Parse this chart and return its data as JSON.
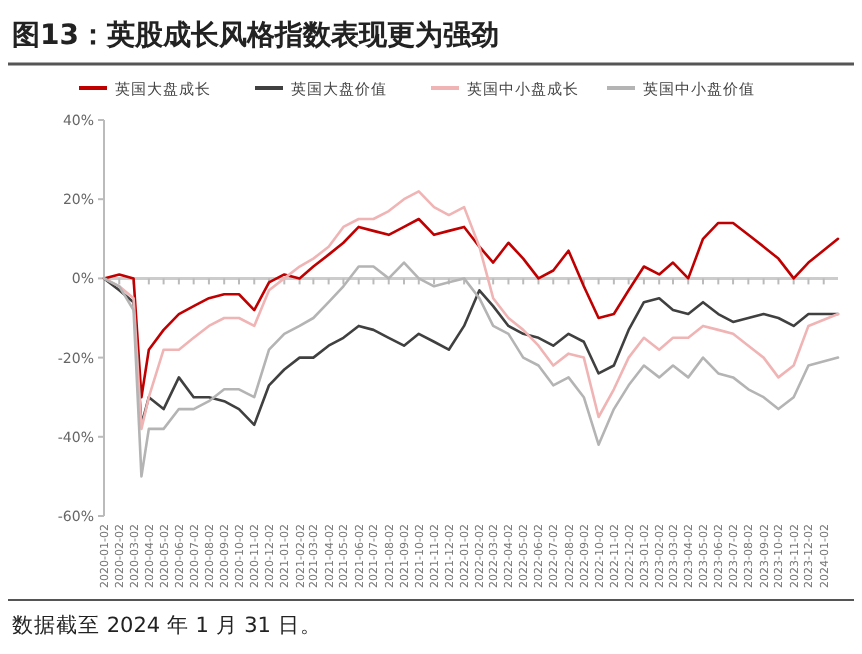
{
  "chart_data": {
    "type": "line",
    "title": "图13：英股成长风格指数表现更为强劲",
    "annotations": [
      "数据截至 2024 年 1 月 31 日。"
    ],
    "x": [
      "2020-01-02",
      "2020-02-02",
      "2020-03-02",
      "2020-03-18",
      "2020-04-02",
      "2020-05-02",
      "2020-06-02",
      "2020-07-02",
      "2020-08-02",
      "2020-09-02",
      "2020-10-02",
      "2020-11-02",
      "2020-12-02",
      "2021-01-02",
      "2021-02-02",
      "2021-03-02",
      "2021-04-02",
      "2021-05-02",
      "2021-06-02",
      "2021-07-02",
      "2021-08-02",
      "2021-09-02",
      "2021-10-02",
      "2021-11-02",
      "2021-12-02",
      "2022-01-02",
      "2022-02-02",
      "2022-03-02",
      "2022-04-02",
      "2022-05-02",
      "2022-06-02",
      "2022-07-02",
      "2022-08-02",
      "2022-09-02",
      "2022-10-02",
      "2022-11-02",
      "2022-12-02",
      "2023-01-02",
      "2023-02-02",
      "2023-03-02",
      "2023-04-02",
      "2023-05-02",
      "2023-06-02",
      "2023-07-02",
      "2023-08-02",
      "2023-09-02",
      "2023-10-02",
      "2023-11-02",
      "2023-12-02",
      "2024-01-31"
    ],
    "series": [
      {
        "name": "英国大盘成长",
        "color": "#c00000",
        "values": [
          0,
          1,
          0,
          -30,
          -18,
          -13,
          -9,
          -7,
          -5,
          -4,
          -4,
          -8,
          -1,
          1,
          0,
          3,
          6,
          9,
          13,
          12,
          11,
          13,
          15,
          11,
          12,
          13,
          8,
          4,
          9,
          5,
          0,
          2,
          7,
          -2,
          -10,
          -9,
          -3,
          3,
          1,
          4,
          0,
          10,
          14,
          14,
          11,
          8,
          5,
          0,
          4,
          10
        ]
      },
      {
        "name": "英国大盘价值",
        "color": "#404040",
        "values": [
          0,
          -3,
          -6,
          -37,
          -30,
          -33,
          -25,
          -30,
          -30,
          -31,
          -33,
          -37,
          -27,
          -23,
          -20,
          -20,
          -17,
          -15,
          -12,
          -13,
          -15,
          -17,
          -14,
          -16,
          -18,
          -12,
          -3,
          -7,
          -12,
          -14,
          -15,
          -17,
          -14,
          -16,
          -24,
          -22,
          -13,
          -6,
          -5,
          -8,
          -9,
          -6,
          -9,
          -11,
          -10,
          -9,
          -10,
          -12,
          -9,
          -9
        ]
      },
      {
        "name": "英国中小盘成长",
        "color": "#f0b4b4",
        "values": [
          0,
          -2,
          -5,
          -38,
          -30,
          -18,
          -18,
          -15,
          -12,
          -10,
          -10,
          -12,
          -3,
          0,
          3,
          5,
          8,
          13,
          15,
          15,
          17,
          20,
          22,
          18,
          16,
          18,
          8,
          -5,
          -10,
          -13,
          -17,
          -22,
          -19,
          -20,
          -35,
          -28,
          -20,
          -15,
          -18,
          -15,
          -15,
          -12,
          -13,
          -14,
          -17,
          -20,
          -25,
          -22,
          -12,
          -9
        ]
      },
      {
        "name": "英国中小盘价值",
        "color": "#b4b4b4",
        "values": [
          0,
          -2,
          -8,
          -50,
          -38,
          -38,
          -33,
          -33,
          -31,
          -28,
          -28,
          -30,
          -18,
          -14,
          -12,
          -10,
          -6,
          -2,
          3,
          3,
          0,
          4,
          0,
          -2,
          -1,
          0,
          -5,
          -12,
          -14,
          -20,
          -22,
          -27,
          -25,
          -30,
          -42,
          -33,
          -27,
          -22,
          -25,
          -22,
          -25,
          -20,
          -24,
          -25,
          -28,
          -30,
          -33,
          -30,
          -22,
          -20
        ]
      }
    ],
    "xlim": [
      "2020-01-02",
      "2024-01-31"
    ],
    "xticks": [
      "2020-01-02",
      "2020-02-02",
      "2020-03-02",
      "2020-04-02",
      "2020-05-02",
      "2020-06-02",
      "2020-07-02",
      "2020-08-02",
      "2020-09-02",
      "2020-10-02",
      "2020-11-02",
      "2020-12-02",
      "2021-01-02",
      "2021-02-02",
      "2021-03-02",
      "2021-04-02",
      "2021-05-02",
      "2021-06-02",
      "2021-07-02",
      "2021-08-02",
      "2021-09-02",
      "2021-10-02",
      "2021-11-02",
      "2021-12-02",
      "2022-01-02",
      "2022-02-02",
      "2022-03-02",
      "2022-04-02",
      "2022-05-02",
      "2022-06-02",
      "2022-07-02",
      "2022-08-02",
      "2022-09-02",
      "2022-10-02",
      "2022-11-02",
      "2022-12-02",
      "2023-01-02",
      "2023-02-02",
      "2023-03-02",
      "2023-04-02",
      "2023-05-02",
      "2023-06-02",
      "2023-07-02",
      "2023-08-02",
      "2023-09-02",
      "2023-10-02",
      "2023-11-02",
      "2023-12-02",
      "2024-01-02"
    ],
    "ylim": [
      -60,
      40
    ],
    "yticks": [
      {
        "value": -60,
        "label": "-60%"
      },
      {
        "value": -40,
        "label": "-40%"
      },
      {
        "value": -20,
        "label": "-20%"
      },
      {
        "value": 0,
        "label": "0%"
      },
      {
        "value": 20,
        "label": "20%"
      },
      {
        "value": 40,
        "label": "40%"
      }
    ],
    "legend": "top",
    "marker": "none",
    "line_style": "solid"
  }
}
